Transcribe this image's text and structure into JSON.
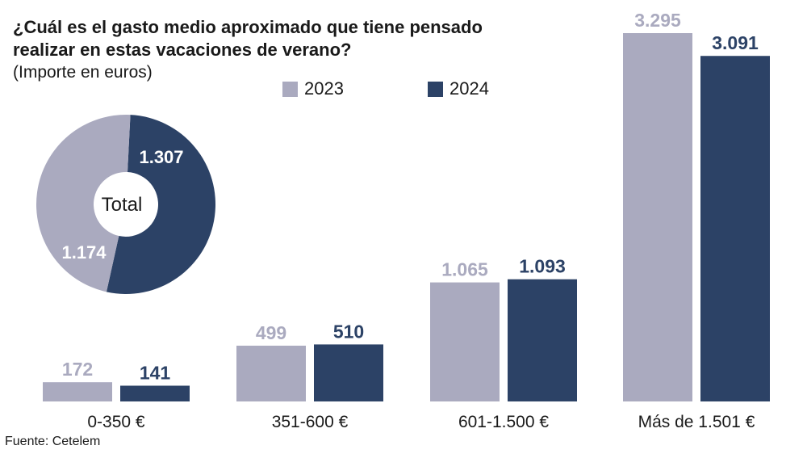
{
  "chart_data": [
    {
      "type": "bar",
      "title": "¿Cuál es el gasto medio aproximado que tiene pensado realizar en estas vacaciones de verano?",
      "subtitle": "(Importe en euros)",
      "categories": [
        "0-350 €",
        "351-600 €",
        "601-1.500 €",
        "Más de 1.501 €"
      ],
      "series": [
        {
          "name": "2023",
          "values": [
            172,
            499,
            1065,
            3295
          ],
          "labels": [
            "172",
            "499",
            "1.065",
            "3.295"
          ],
          "color": "#aaaabf"
        },
        {
          "name": "2024",
          "values": [
            141,
            510,
            1093,
            3091
          ],
          "labels": [
            "141",
            "510",
            "1.093",
            "3.091"
          ],
          "color": "#2c4266"
        }
      ],
      "ylim": [
        0,
        3295
      ],
      "legend": "top",
      "grid": false
    },
    {
      "type": "pie",
      "center_label": "Total",
      "slices": [
        {
          "name": "2024",
          "value": 1307,
          "label": "1.307",
          "color": "#2c4266"
        },
        {
          "name": "2023",
          "value": 1174,
          "label": "1.174",
          "color": "#aaaabf"
        }
      ]
    }
  ],
  "header": {
    "title": "¿Cuál es el gasto medio aproximado que tiene pensado realizar en estas vacaciones de verano?",
    "subtitle": "(Importe en euros)"
  },
  "legend": {
    "item_2023": "2023",
    "item_2024": "2024"
  },
  "footer": {
    "source": "Fuente: Cetelem"
  }
}
